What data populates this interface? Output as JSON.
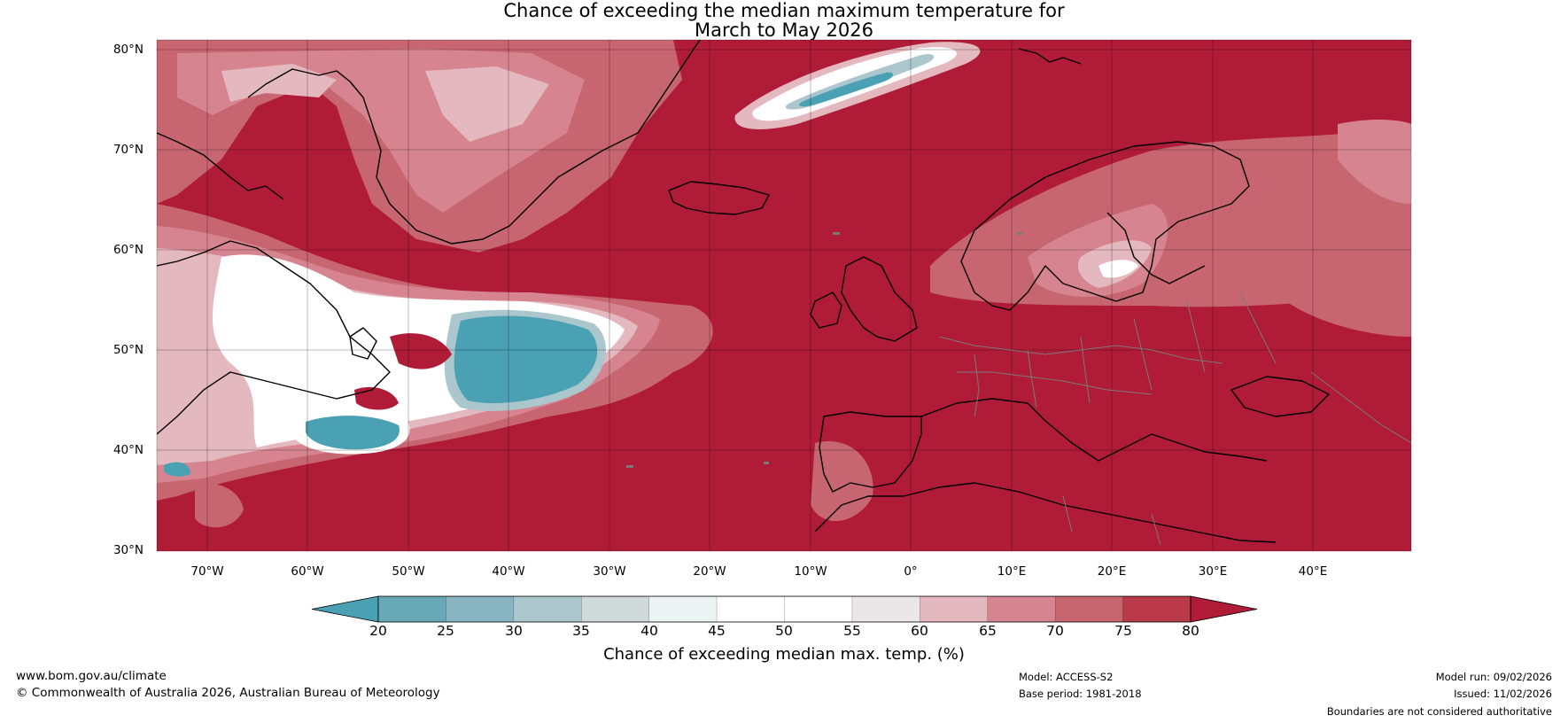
{
  "title": {
    "line1": "Chance of exceeding the median maximum temperature for",
    "line2": "March to May 2026"
  },
  "map": {
    "latitude_labels": [
      "80°N",
      "70°N",
      "60°N",
      "50°N",
      "40°N",
      "30°N"
    ],
    "longitude_labels": [
      "70°W",
      "60°W",
      "50°W",
      "40°W",
      "30°W",
      "20°W",
      "10°W",
      "0°",
      "10°E",
      "20°E",
      "30°E",
      "40°E"
    ],
    "dominant_color": "#b01c38",
    "cool_color": "#4aa1b3"
  },
  "colorbar": {
    "label": "Chance of exceeding median max. temp. (%)",
    "ticks": [
      "20",
      "25",
      "30",
      "35",
      "40",
      "45",
      "50",
      "55",
      "60",
      "65",
      "70",
      "75",
      "80"
    ],
    "colors": [
      "#4aa1b3",
      "#68a9b8",
      "#89b5c2",
      "#abc6cd",
      "#d0dadb",
      "#ecf3f3",
      "#ffffff",
      "#ffffff",
      "#ebe6e7",
      "#e3b8be",
      "#d68590",
      "#c76570",
      "#bb3a4a",
      "#b01c38"
    ]
  },
  "footer": {
    "website": "www.bom.gov.au/climate",
    "copyright": "© Commonwealth of Australia 2026, Australian Bureau of Meteorology",
    "model": "Model: ACCESS-S2",
    "base_period": "Base period: 1981-2018",
    "model_run": "Model run: 09/02/2026",
    "issued": "Issued: 11/02/2026",
    "disclaimer": "Boundaries are not considered authoritative"
  }
}
